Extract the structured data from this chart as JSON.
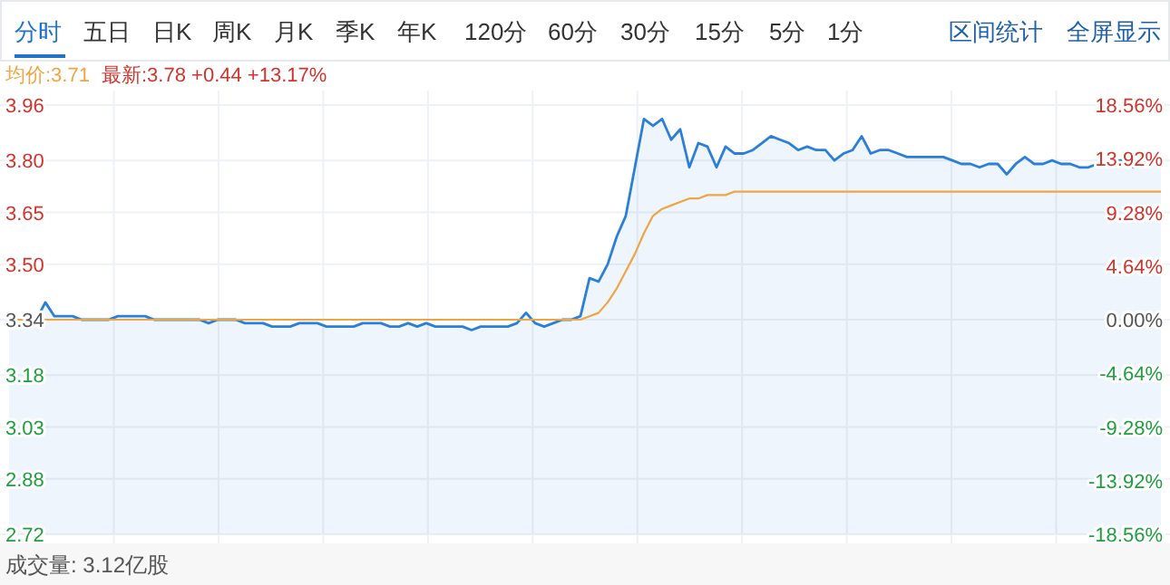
{
  "chart_data": {
    "type": "line",
    "categories": [
      null,
      null,
      null,
      null,
      null,
      null,
      null,
      null,
      null,
      null,
      null,
      null,
      null,
      null,
      null,
      null,
      null,
      null,
      null,
      null,
      null,
      null,
      null,
      null,
      null,
      null,
      null,
      null,
      null,
      null,
      null,
      null,
      null,
      null,
      null,
      null,
      null,
      null,
      null,
      null,
      null,
      null,
      null,
      null,
      null,
      null,
      null,
      null,
      null,
      null,
      null,
      null,
      null,
      null,
      null,
      null,
      null,
      null,
      null,
      null,
      null,
      null,
      null,
      null,
      null,
      null,
      null,
      null,
      null,
      null,
      null,
      null,
      null,
      null,
      null,
      null,
      null,
      null,
      null,
      null,
      null,
      null,
      null,
      null,
      null,
      null,
      null,
      null,
      null,
      null,
      null,
      null,
      null,
      null,
      null,
      null,
      null,
      null,
      null,
      null,
      null,
      null,
      null,
      null,
      null,
      null,
      null,
      null,
      null,
      null,
      null,
      null,
      null,
      null,
      null,
      null,
      null,
      null,
      null,
      null,
      null,
      null,
      null,
      null,
      null,
      null,
      null,
      null
    ],
    "series": [
      {
        "type": "area",
        "color": "#2b7fd6",
        "values": [
          3.33,
          3.32,
          3.32,
          3.34,
          3.39,
          3.35,
          3.35,
          3.35,
          3.34,
          3.34,
          3.34,
          3.34,
          3.35,
          3.35,
          3.35,
          3.35,
          3.34,
          3.34,
          3.34,
          3.34,
          3.34,
          3.34,
          3.33,
          3.34,
          3.34,
          3.34,
          3.33,
          3.33,
          3.33,
          3.32,
          3.32,
          3.32,
          3.33,
          3.33,
          3.33,
          3.32,
          3.32,
          3.32,
          3.32,
          3.33,
          3.33,
          3.33,
          3.32,
          3.32,
          3.33,
          3.32,
          3.33,
          3.32,
          3.32,
          3.32,
          3.32,
          3.31,
          3.32,
          3.32,
          3.32,
          3.32,
          3.33,
          3.36,
          3.33,
          3.32,
          3.33,
          3.34,
          3.34,
          3.35,
          3.46,
          3.45,
          3.5,
          3.58,
          3.64,
          3.78,
          3.92,
          3.9,
          3.92,
          3.86,
          3.89,
          3.78,
          3.85,
          3.84,
          3.78,
          3.84,
          3.82,
          3.82,
          3.83,
          3.85,
          3.87,
          3.86,
          3.85,
          3.83,
          3.84,
          3.83,
          3.83,
          3.8,
          3.82,
          3.83,
          3.87,
          3.82,
          3.83,
          3.83,
          3.82,
          3.81,
          3.81,
          3.81,
          3.81,
          3.81,
          3.8,
          3.79,
          3.79,
          3.78,
          3.79,
          3.79,
          3.76,
          3.79,
          3.81,
          3.79,
          3.79,
          3.8,
          3.79,
          3.79,
          3.78,
          3.78,
          3.79,
          3.79,
          3.8,
          3.8,
          3.78,
          3.79,
          3.81,
          3.8
        ]
      },
      {
        "type": "line",
        "color": "#f0a544",
        "values": [
          3.34,
          3.34,
          3.34,
          3.34,
          3.34,
          3.34,
          3.34,
          3.34,
          3.34,
          3.34,
          3.34,
          3.34,
          3.34,
          3.34,
          3.34,
          3.34,
          3.34,
          3.34,
          3.34,
          3.34,
          3.34,
          3.34,
          3.34,
          3.34,
          3.34,
          3.34,
          3.34,
          3.34,
          3.34,
          3.34,
          3.34,
          3.34,
          3.34,
          3.34,
          3.34,
          3.34,
          3.34,
          3.34,
          3.34,
          3.34,
          3.34,
          3.34,
          3.34,
          3.34,
          3.34,
          3.34,
          3.34,
          3.34,
          3.34,
          3.34,
          3.34,
          3.34,
          3.34,
          3.34,
          3.34,
          3.34,
          3.34,
          3.34,
          3.34,
          3.34,
          3.34,
          3.34,
          3.34,
          3.34,
          3.35,
          3.36,
          3.39,
          3.43,
          3.48,
          3.53,
          3.59,
          3.64,
          3.66,
          3.67,
          3.68,
          3.69,
          3.69,
          3.7,
          3.7,
          3.7,
          3.71,
          3.71,
          3.71,
          3.71,
          3.71,
          3.71,
          3.71,
          3.71,
          3.71,
          3.71,
          3.71,
          3.71,
          3.71,
          3.71,
          3.71,
          3.71,
          3.71,
          3.71,
          3.71,
          3.71,
          3.71,
          3.71,
          3.71,
          3.71,
          3.71,
          3.71,
          3.71,
          3.71,
          3.71,
          3.71,
          3.71,
          3.71,
          3.71,
          3.71,
          3.71,
          3.71,
          3.71,
          3.71,
          3.71,
          3.71,
          3.71,
          3.71,
          3.71,
          3.71,
          3.71,
          3.71,
          3.71,
          3.71
        ]
      }
    ],
    "ylim": [
      2.72,
      3.96
    ],
    "yticks": [
      {
        "value": 3.96,
        "label": "3.96"
      },
      {
        "value": 3.8,
        "label": "3.80"
      },
      {
        "value": 3.65,
        "label": "3.65"
      },
      {
        "value": 3.5,
        "label": "3.50"
      },
      {
        "value": 3.34,
        "label": "3.34"
      },
      {
        "value": 3.18,
        "label": "3.18"
      },
      {
        "value": 3.03,
        "label": "3.03"
      },
      {
        "value": 2.88,
        "label": "2.88"
      },
      {
        "value": 2.72,
        "label": "2.72"
      }
    ],
    "y2lim": [
      -18.56,
      18.56
    ],
    "y2ticks": [
      {
        "value": 18.56,
        "label": "18.56%"
      },
      {
        "value": 13.92,
        "label": "13.92%"
      },
      {
        "value": 9.28,
        "label": "9.28%"
      },
      {
        "value": 4.64,
        "label": "4.64%"
      },
      {
        "value": 0,
        "label": "0.00%"
      },
      {
        "value": -4.64,
        "label": "-4.64%"
      },
      {
        "value": -9.28,
        "label": "-9.28%"
      },
      {
        "value": -13.92,
        "label": "-13.92%"
      },
      {
        "value": -18.56,
        "label": "-18.56%"
      }
    ],
    "grid": true,
    "annotations": [
      "分时",
      "五日",
      "日K",
      "周K",
      "月K",
      "季K",
      "年K",
      "120分",
      "60分",
      "30分",
      "15分",
      "5分",
      "1分",
      "区间统计",
      "全屏显示",
      "均价:3.71",
      "最新:3.78 +0.44 +13.17%",
      "成交量: 3.12亿股"
    ]
  }
}
